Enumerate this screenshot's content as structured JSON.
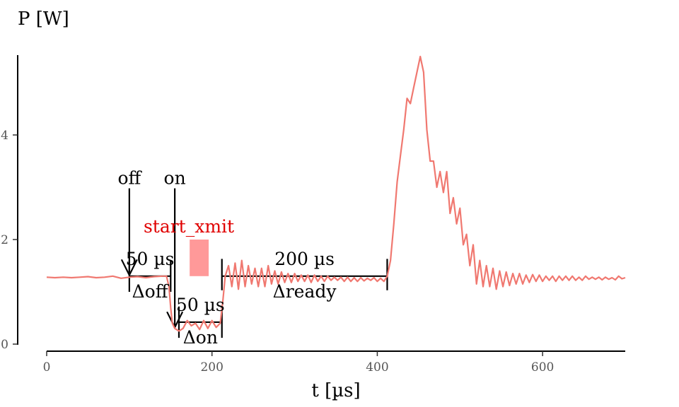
{
  "chart_data": {
    "type": "line",
    "ylabel": "P [W]",
    "xlabel": "t [µs]",
    "xlim": [
      0,
      700
    ],
    "ylim": [
      0,
      5.5
    ],
    "x_ticks": [
      0,
      200,
      400,
      600
    ],
    "y_ticks": [
      0,
      2,
      4
    ],
    "grid": false,
    "line_color": "#f07870",
    "series": [
      {
        "values": [
          [
            0,
            1.28
          ],
          [
            10,
            1.27
          ],
          [
            20,
            1.28
          ],
          [
            30,
            1.27
          ],
          [
            40,
            1.28
          ],
          [
            50,
            1.29
          ],
          [
            60,
            1.27
          ],
          [
            70,
            1.28
          ],
          [
            80,
            1.3
          ],
          [
            90,
            1.26
          ],
          [
            100,
            1.28
          ],
          [
            110,
            1.29
          ],
          [
            120,
            1.27
          ],
          [
            130,
            1.29
          ],
          [
            140,
            1.3
          ],
          [
            145,
            1.3
          ],
          [
            148,
            1.1
          ],
          [
            150,
            0.7
          ],
          [
            152,
            0.4
          ],
          [
            155,
            0.3
          ],
          [
            160,
            0.25
          ],
          [
            165,
            0.3
          ],
          [
            170,
            0.45
          ],
          [
            175,
            0.35
          ],
          [
            180,
            0.4
          ],
          [
            185,
            0.28
          ],
          [
            190,
            0.45
          ],
          [
            195,
            0.3
          ],
          [
            200,
            0.45
          ],
          [
            205,
            0.32
          ],
          [
            210,
            0.4
          ],
          [
            213,
            0.8
          ],
          [
            216,
            1.3
          ],
          [
            220,
            1.5
          ],
          [
            224,
            1.1
          ],
          [
            228,
            1.55
          ],
          [
            232,
            1.05
          ],
          [
            236,
            1.6
          ],
          [
            240,
            1.1
          ],
          [
            244,
            1.5
          ],
          [
            248,
            1.15
          ],
          [
            252,
            1.45
          ],
          [
            256,
            1.1
          ],
          [
            260,
            1.45
          ],
          [
            264,
            1.1
          ],
          [
            268,
            1.5
          ],
          [
            272,
            1.15
          ],
          [
            276,
            1.4
          ],
          [
            280,
            1.15
          ],
          [
            284,
            1.38
          ],
          [
            288,
            1.18
          ],
          [
            292,
            1.35
          ],
          [
            296,
            1.18
          ],
          [
            300,
            1.35
          ],
          [
            304,
            1.2
          ],
          [
            308,
            1.32
          ],
          [
            312,
            1.2
          ],
          [
            316,
            1.32
          ],
          [
            320,
            1.18
          ],
          [
            324,
            1.32
          ],
          [
            328,
            1.2
          ],
          [
            332,
            1.3
          ],
          [
            336,
            1.2
          ],
          [
            340,
            1.3
          ],
          [
            344,
            1.22
          ],
          [
            348,
            1.28
          ],
          [
            352,
            1.22
          ],
          [
            356,
            1.28
          ],
          [
            360,
            1.2
          ],
          [
            364,
            1.28
          ],
          [
            368,
            1.2
          ],
          [
            372,
            1.27
          ],
          [
            376,
            1.2
          ],
          [
            380,
            1.27
          ],
          [
            384,
            1.21
          ],
          [
            388,
            1.26
          ],
          [
            392,
            1.22
          ],
          [
            396,
            1.27
          ],
          [
            400,
            1.2
          ],
          [
            404,
            1.26
          ],
          [
            408,
            1.2
          ],
          [
            412,
            1.3
          ],
          [
            416,
            1.6
          ],
          [
            420,
            2.3
          ],
          [
            424,
            3.1
          ],
          [
            428,
            3.6
          ],
          [
            432,
            4.1
          ],
          [
            436,
            4.7
          ],
          [
            440,
            4.6
          ],
          [
            444,
            4.9
          ],
          [
            448,
            5.2
          ],
          [
            452,
            5.5
          ],
          [
            456,
            5.2
          ],
          [
            460,
            4.1
          ],
          [
            464,
            3.5
          ],
          [
            468,
            3.5
          ],
          [
            472,
            3.0
          ],
          [
            476,
            3.3
          ],
          [
            480,
            2.9
          ],
          [
            484,
            3.3
          ],
          [
            488,
            2.5
          ],
          [
            492,
            2.8
          ],
          [
            496,
            2.3
          ],
          [
            500,
            2.6
          ],
          [
            504,
            1.9
          ],
          [
            508,
            2.1
          ],
          [
            512,
            1.5
          ],
          [
            516,
            1.9
          ],
          [
            520,
            1.15
          ],
          [
            524,
            1.6
          ],
          [
            528,
            1.1
          ],
          [
            532,
            1.5
          ],
          [
            536,
            1.1
          ],
          [
            540,
            1.45
          ],
          [
            544,
            1.05
          ],
          [
            548,
            1.4
          ],
          [
            552,
            1.1
          ],
          [
            556,
            1.38
          ],
          [
            560,
            1.12
          ],
          [
            564,
            1.35
          ],
          [
            568,
            1.15
          ],
          [
            572,
            1.35
          ],
          [
            576,
            1.15
          ],
          [
            580,
            1.32
          ],
          [
            584,
            1.18
          ],
          [
            588,
            1.33
          ],
          [
            592,
            1.2
          ],
          [
            596,
            1.32
          ],
          [
            600,
            1.2
          ],
          [
            604,
            1.3
          ],
          [
            608,
            1.22
          ],
          [
            612,
            1.3
          ],
          [
            616,
            1.2
          ],
          [
            620,
            1.3
          ],
          [
            624,
            1.22
          ],
          [
            628,
            1.3
          ],
          [
            632,
            1.22
          ],
          [
            636,
            1.3
          ],
          [
            640,
            1.22
          ],
          [
            644,
            1.28
          ],
          [
            648,
            1.22
          ],
          [
            652,
            1.3
          ],
          [
            656,
            1.24
          ],
          [
            660,
            1.28
          ],
          [
            664,
            1.24
          ],
          [
            668,
            1.28
          ],
          [
            672,
            1.23
          ],
          [
            676,
            1.28
          ],
          [
            680,
            1.24
          ],
          [
            684,
            1.27
          ],
          [
            688,
            1.23
          ],
          [
            692,
            1.3
          ],
          [
            696,
            1.25
          ],
          [
            700,
            1.27
          ]
        ]
      }
    ],
    "annotations": {
      "markers": [
        {
          "label": "off",
          "x": 100,
          "y_top": 2.98,
          "y_bottom": 1.32
        },
        {
          "label": "on",
          "x": 155,
          "y_top": 2.98,
          "y_bottom": 0.32
        }
      ],
      "highlight": {
        "label": "start_xmit",
        "color": "#ff9999",
        "x0": 173,
        "x1": 196,
        "y0": 1.3,
        "y1": 2.0
      },
      "intervals": [
        {
          "top_label": "50 µs",
          "bottom_label": "Δoff",
          "x0": 100,
          "x1": 150,
          "y": 1.3,
          "tick_y0": 1.0,
          "tick_y1": 1.6
        },
        {
          "top_label": "50 µs",
          "bottom_label": "Δon",
          "x0": 160,
          "x1": 212,
          "y": 0.42,
          "tick_y0": 0.12,
          "tick_y1": 0.72
        },
        {
          "top_label": "200 µs",
          "bottom_label": "Δready",
          "x0": 212,
          "x1": 412,
          "y": 1.3,
          "tick_y0": 1.03,
          "tick_y1": 1.63
        }
      ]
    }
  }
}
